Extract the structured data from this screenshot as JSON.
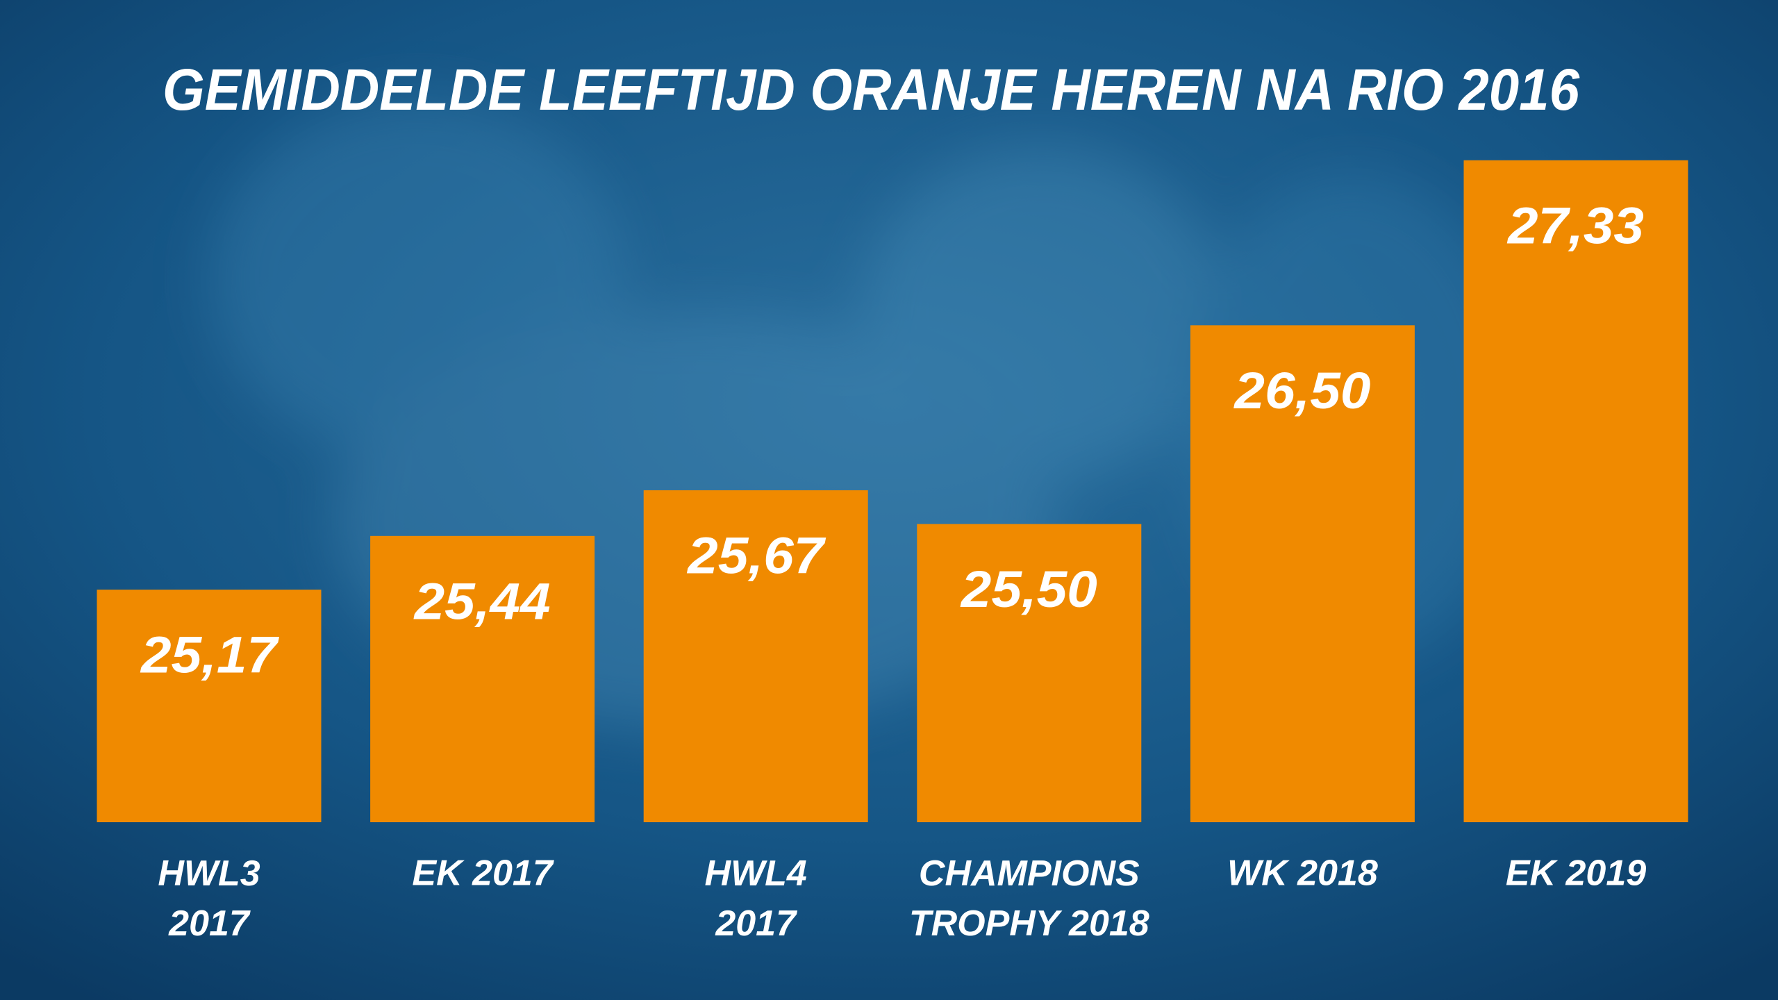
{
  "chart_data": {
    "type": "bar",
    "title": "GEMIDDELDE LEEFTIJD ORANJE HEREN NA RIO 2016",
    "categories": [
      "HWL3\n2017",
      "EK 2017",
      "HWL4\n2017",
      "CHAMPIONS\nTROPHY 2018",
      "WK 2018",
      "EK 2019"
    ],
    "values": [
      25.17,
      25.44,
      25.67,
      25.5,
      26.5,
      27.33
    ],
    "value_labels": [
      "25,17",
      "25,44",
      "25,67",
      "25,50",
      "26,50",
      "27,33"
    ],
    "color": "#f08a00",
    "ylim": [
      24,
      28
    ]
  }
}
